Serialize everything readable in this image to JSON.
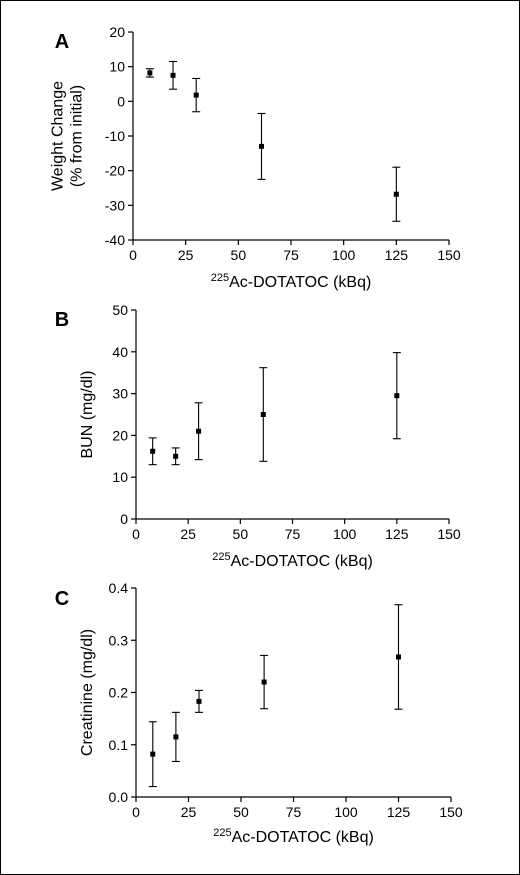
{
  "chart_data": [
    {
      "type": "scatter",
      "panel_label": "A",
      "xlabel": {
        "superscript": "225",
        "text": "Ac-DOTATOC (kBq)"
      },
      "ylabel": [
        "Weight Change",
        "(% from initial)"
      ],
      "xlim": [
        0,
        150
      ],
      "ylim": [
        -40,
        20
      ],
      "xticks": [
        0,
        25,
        50,
        75,
        100,
        125,
        150
      ],
      "yticks": [
        -40,
        -30,
        -20,
        -10,
        0,
        10,
        20
      ],
      "x": [
        8,
        19,
        30,
        61,
        125
      ],
      "y": [
        8.2,
        7.5,
        1.8,
        -13.0,
        -26.8
      ],
      "err": [
        1.2,
        4.0,
        4.8,
        9.5,
        7.8
      ]
    },
    {
      "type": "scatter",
      "panel_label": "B",
      "xlabel": {
        "superscript": "225",
        "text": "Ac-DOTATOC (kBq)"
      },
      "ylabel": [
        "BUN (mg/dl)"
      ],
      "xlim": [
        0,
        150
      ],
      "ylim": [
        0,
        50
      ],
      "xticks": [
        0,
        25,
        50,
        75,
        100,
        125,
        150
      ],
      "yticks": [
        0,
        10,
        20,
        30,
        40,
        50
      ],
      "x": [
        8,
        19,
        30,
        61,
        125
      ],
      "y": [
        16.2,
        15.0,
        21.0,
        25.0,
        29.5
      ],
      "err": [
        3.2,
        2.0,
        6.8,
        11.2,
        10.3
      ]
    },
    {
      "type": "scatter",
      "panel_label": "C",
      "xlabel": {
        "superscript": "225",
        "text": "Ac-DOTATOC (kBq)"
      },
      "ylabel": [
        "Creatinine (mg/dl)"
      ],
      "xlim": [
        0,
        150
      ],
      "ylim": [
        0.0,
        0.4
      ],
      "xticks": [
        0,
        25,
        50,
        75,
        100,
        125,
        150
      ],
      "yticks": [
        0.0,
        0.1,
        0.2,
        0.3,
        0.4
      ],
      "ytick_labels": [
        "0.0",
        "0.1",
        "0.2",
        "0.3",
        "0.4"
      ],
      "x": [
        8,
        19,
        30,
        61,
        125
      ],
      "y": [
        0.082,
        0.115,
        0.183,
        0.22,
        0.268
      ],
      "err": [
        0.062,
        0.047,
        0.021,
        0.051,
        0.1
      ]
    }
  ]
}
